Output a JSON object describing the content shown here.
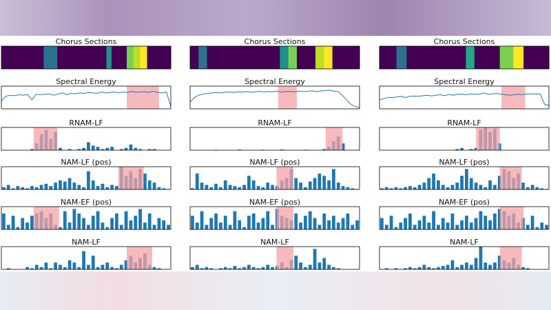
{
  "chart_data": [
    {
      "type": "segments",
      "title": "Chorus Sections",
      "xlim": [
        0,
        100
      ],
      "x": [
        0,
        25,
        33,
        62,
        65,
        74,
        78,
        82,
        86,
        90,
        100
      ],
      "colors": [
        "#440154",
        "#2c728e",
        "#440154",
        "#21918c",
        "#440154",
        "#7ad151",
        "#bddf26",
        "#fde725",
        "#440154",
        "#440154"
      ]
    },
    {
      "type": "line",
      "title": "Spectral Energy",
      "xlim": [
        0,
        100
      ],
      "ylim": [
        0,
        1
      ],
      "color": "#1f77b4",
      "highlight": [
        74,
        93
      ],
      "highlight_color": "#f4a3a6",
      "values": [
        0.35,
        0.55,
        0.6,
        0.58,
        0.62,
        0.6,
        0.63,
        0.4,
        0.65,
        0.62,
        0.64,
        0.66,
        0.6,
        0.65,
        0.7,
        0.62,
        0.68,
        0.66,
        0.7,
        0.68,
        0.72,
        0.7,
        0.68,
        0.74,
        0.7,
        0.72,
        0.75,
        0.7,
        0.74,
        0.72,
        0.76,
        0.73,
        0.74,
        0.75,
        0.72,
        0.78,
        0.72,
        0.7,
        0.74,
        0.1
      ]
    },
    {
      "type": "bar",
      "title": "RNAM-LF",
      "xlim": [
        0,
        100
      ],
      "ylim": [
        0,
        1
      ],
      "color": "#1f77b4",
      "highlight": [
        19,
        33
      ],
      "highlight_color": "#f4a3a6",
      "values": [
        0,
        0,
        0,
        0,
        0,
        0,
        0.05,
        0.3,
        0.7,
        0.9,
        0.5,
        0.8,
        0.1,
        0,
        0.05,
        0,
        0.05,
        0.1,
        0.35,
        0.2,
        0.15,
        0.05,
        0.1,
        0.15,
        0,
        0.05,
        0.1,
        0.25,
        0.1,
        0.05,
        0,
        0.05,
        0.05,
        0,
        0,
        0
      ]
    },
    {
      "type": "bar",
      "title": "NAM-LF (pos)",
      "xlim": [
        0,
        100
      ],
      "ylim": [
        0,
        1
      ],
      "color": "#1f77b4",
      "highlight": [
        69,
        84
      ],
      "highlight_color": "#f4a3a6",
      "values": [
        0.1,
        0.2,
        0.05,
        0.15,
        0.1,
        0.05,
        0.15,
        0.1,
        0.2,
        0.25,
        0.15,
        0.3,
        0.4,
        0.35,
        0.5,
        0.3,
        0.2,
        0.1,
        0.8,
        0.4,
        0.15,
        0.25,
        0.1,
        0.2,
        0.15,
        1,
        0.6,
        0.8,
        0.5,
        0.9,
        0.7,
        0.4,
        0.3,
        0.1,
        0.05,
        0.02
      ]
    },
    {
      "type": "bar",
      "title": "NAM-EF (pos)",
      "xlim": [
        0,
        100
      ],
      "ylim": [
        0,
        1
      ],
      "color": "#1f77b4",
      "highlight": [
        19,
        34
      ],
      "highlight_color": "#f4a3a6",
      "values": [
        0.7,
        0.2,
        0.6,
        0.1,
        0.5,
        0.3,
        0.6,
        0.7,
        0.8,
        0.5,
        0.7,
        0.2,
        0.1,
        0.8,
        0.3,
        0.9,
        0.7,
        0.5,
        0.2,
        0.6,
        0.8,
        0.3,
        0.1,
        0.5,
        0.7,
        0.2,
        0.8,
        0.4,
        0.6,
        0.9,
        0.3,
        0.7,
        0.2,
        0.5,
        0.4,
        0.2
      ]
    },
    {
      "type": "bar",
      "title": "NAM-LF",
      "xlim": [
        0,
        100
      ],
      "ylim": [
        0,
        1
      ],
      "color": "#1f77b4",
      "highlight": [
        74,
        89
      ],
      "highlight_color": "#f4a3a6",
      "values": [
        0,
        0.05,
        0,
        0,
        0,
        0.1,
        0.05,
        0.2,
        0.1,
        0.3,
        0.05,
        0.3,
        0.2,
        0.1,
        0.4,
        0.3,
        0.1,
        0.8,
        0.2,
        0.6,
        0.1,
        0.2,
        0.3,
        0.1,
        0.05,
        0.2,
        0.4,
        0.6,
        0.3,
        0.5,
        0.7,
        0.2,
        0.1,
        0.05,
        0,
        0
      ]
    },
    {
      "type": "segments",
      "title": "Chorus Sections",
      "xlim": [
        0,
        100
      ],
      "x": [
        0,
        5,
        10,
        53,
        58,
        63,
        74,
        79,
        84,
        100
      ],
      "colors": [
        "#440154",
        "#2c728e",
        "#440154",
        "#21918c",
        "#7ad151",
        "#440154",
        "#bddf26",
        "#fde725",
        "#440154"
      ]
    },
    {
      "type": "line",
      "title": "Spectral Energy",
      "xlim": [
        0,
        100
      ],
      "ylim": [
        0,
        1
      ],
      "color": "#1f77b4",
      "highlight": [
        52,
        63
      ],
      "highlight_color": "#f4a3a6",
      "values": [
        0.3,
        0.5,
        0.6,
        0.65,
        0.68,
        0.7,
        0.72,
        0.7,
        0.73,
        0.74,
        0.72,
        0.75,
        0.74,
        0.76,
        0.73,
        0.75,
        0.77,
        0.74,
        0.76,
        0.75,
        0.78,
        0.74,
        0.76,
        0.77,
        0.75,
        0.78,
        0.76,
        0.77,
        0.8,
        0.76,
        0.78,
        0.8,
        0.82,
        0.78,
        0.76,
        0.6,
        0.4,
        0.2,
        0.1,
        0.05
      ]
    },
    {
      "type": "bar",
      "title": "RNAM-LF",
      "xlim": [
        0,
        100
      ],
      "ylim": [
        0,
        1
      ],
      "color": "#1f77b4",
      "highlight": [
        80,
        90
      ],
      "highlight_color": "#f4a3a6",
      "values": [
        0,
        0,
        0,
        0,
        0,
        0.02,
        0,
        0,
        0,
        0,
        0.03,
        0,
        0,
        0,
        0,
        0.02,
        0,
        0,
        0,
        0.03,
        0,
        0,
        0,
        0,
        0.02,
        0,
        0,
        0,
        0.05,
        0.15,
        0.4,
        0.6,
        0.3,
        0,
        0,
        0
      ]
    },
    {
      "type": "bar",
      "title": "NAM-LF (pos)",
      "xlim": [
        0,
        100
      ],
      "ylim": [
        0,
        1
      ],
      "color": "#1f77b4",
      "highlight": [
        51,
        61
      ],
      "highlight_color": "#f4a3a6",
      "values": [
        0.05,
        0.7,
        0.3,
        0.2,
        0.1,
        0.25,
        0.1,
        0.4,
        0.2,
        0.15,
        0.1,
        0.2,
        0.6,
        0.4,
        0.15,
        0.1,
        0.3,
        0.2,
        0.15,
        0.4,
        0.5,
        0.9,
        0.5,
        0.3,
        0.1,
        0.35,
        0.5,
        0.7,
        0.6,
        0.4,
        0.9,
        0.3,
        0.15,
        0.1,
        0.05,
        0.02
      ]
    },
    {
      "type": "bar",
      "title": "NAM-EF (pos)",
      "xlim": [
        0,
        100
      ],
      "ylim": [
        0,
        1
      ],
      "color": "#1f77b4",
      "highlight": [
        51,
        61
      ],
      "highlight_color": "#f4a3a6",
      "values": [
        0.6,
        0.3,
        0.8,
        0.2,
        0.5,
        0.7,
        0.3,
        0.6,
        0.2,
        0.8,
        0.4,
        0.1,
        0.6,
        0.7,
        0.3,
        0.5,
        0.8,
        0.2,
        0.9,
        0.6,
        0.5,
        0.4,
        0.7,
        0.3,
        0.6,
        0.8,
        0.5,
        0.2,
        0.7,
        0.4,
        0.6,
        0.3,
        0.5,
        0.7,
        0.2,
        0.4
      ]
    },
    {
      "type": "bar",
      "title": "NAM-LF",
      "xlim": [
        0,
        100
      ],
      "ylim": [
        0,
        1
      ],
      "color": "#1f77b4",
      "highlight": [
        51,
        61
      ],
      "highlight_color": "#f4a3a6",
      "values": [
        0.1,
        0.2,
        0.05,
        0.1,
        0.05,
        0,
        0.05,
        0.1,
        0.05,
        0.15,
        0.05,
        0.1,
        0.2,
        0.1,
        0.05,
        0.1,
        0.2,
        0.1,
        0.15,
        0.3,
        0.1,
        0.4,
        0.6,
        0.3,
        0.1,
        0.2,
        0.9,
        0.3,
        0.5,
        0.2,
        0.1,
        0.05,
        0,
        0,
        0,
        0
      ]
    },
    {
      "type": "segments",
      "title": "Chorus Sections",
      "xlim": [
        0,
        100
      ],
      "x": [
        0,
        10,
        16,
        51,
        56,
        71,
        79,
        85,
        100
      ],
      "colors": [
        "#440154",
        "#2c728e",
        "#440154",
        "#22a884",
        "#440154",
        "#7ad151",
        "#fde725",
        "#440154"
      ]
    },
    {
      "type": "line",
      "title": "Spectral Energy",
      "xlim": [
        0,
        100
      ],
      "ylim": [
        0,
        1
      ],
      "color": "#1f77b4",
      "highlight": [
        72,
        86
      ],
      "highlight_color": "#f4a3a6",
      "values": [
        0.4,
        0.45,
        0.5,
        0.5,
        0.52,
        0.55,
        0.5,
        0.55,
        0.56,
        0.55,
        0.58,
        0.6,
        0.57,
        0.6,
        0.62,
        0.58,
        0.63,
        0.6,
        0.64,
        0.65,
        0.62,
        0.66,
        0.64,
        0.65,
        0.7,
        0.64,
        0.66,
        0.68,
        0.65,
        0.62,
        0.6,
        0.62,
        0.64,
        0.63,
        0.66,
        0.65,
        0.66,
        0.65,
        0.2,
        0.15
      ]
    },
    {
      "type": "bar",
      "title": "RNAM-LF",
      "xlim": [
        0,
        100
      ],
      "ylim": [
        0,
        1
      ],
      "color": "#1f77b4",
      "highlight": [
        57,
        71
      ],
      "highlight_color": "#f4a3a6",
      "values": [
        0,
        0,
        0,
        0,
        0,
        0,
        0,
        0,
        0,
        0,
        0,
        0,
        0,
        0,
        0,
        0,
        0.05,
        0.1,
        0,
        0.05,
        0.1,
        0.9,
        1,
        0.8,
        0.95,
        0.3,
        0,
        0,
        0,
        0,
        0,
        0,
        0,
        0,
        0,
        0
      ]
    },
    {
      "type": "bar",
      "title": "NAM-LF (pos)",
      "xlim": [
        0,
        100
      ],
      "ylim": [
        0,
        1
      ],
      "color": "#1f77b4",
      "highlight": [
        71,
        84
      ],
      "highlight_color": "#f4a3a6",
      "values": [
        0.05,
        0.1,
        0.05,
        0.1,
        0.05,
        0.1,
        0.15,
        0.1,
        0.2,
        0.3,
        0.5,
        0.7,
        0.4,
        0.2,
        0.1,
        0.2,
        0.3,
        0.6,
        0.9,
        0.5,
        0.3,
        0.2,
        0.1,
        0.4,
        0.2,
        0.6,
        0.9,
        0.8,
        0.5,
        0.7,
        0.3,
        0.1,
        0.2,
        0.1,
        0.05,
        0.02
      ]
    },
    {
      "type": "bar",
      "title": "NAM-EF (pos)",
      "xlim": [
        0,
        100
      ],
      "ylim": [
        0,
        1
      ],
      "color": "#1f77b4",
      "highlight": [
        71,
        85
      ],
      "highlight_color": "#f4a3a6",
      "values": [
        0.5,
        0.2,
        0.6,
        0.1,
        0.3,
        0.5,
        0.7,
        0.2,
        0.4,
        0.6,
        0.3,
        0.8,
        0.2,
        0.5,
        0.3,
        0.7,
        0.2,
        0.4,
        0.6,
        0.3,
        0.5,
        0.8,
        0.6,
        0.4,
        0.7,
        0.9,
        0.8,
        0.6,
        0.7,
        0.3,
        0.5,
        0.2,
        0.6,
        0.1,
        0.3,
        0.2
      ]
    },
    {
      "type": "bar",
      "title": "NAM-LF",
      "xlim": [
        0,
        100
      ],
      "ylim": [
        0,
        1
      ],
      "color": "#1f77b4",
      "highlight": [
        71,
        84
      ],
      "highlight_color": "#f4a3a6",
      "values": [
        0,
        0.05,
        0,
        0.05,
        0,
        0.05,
        0.1,
        0.05,
        0.1,
        0.2,
        0.1,
        0.05,
        0.1,
        0.15,
        0.2,
        0.4,
        0.1,
        0.2,
        0.3,
        0.2,
        0.5,
        1,
        0.3,
        0.2,
        0.3,
        0.6,
        0.4,
        0.3,
        0.5,
        0.2,
        0.1,
        0.05,
        0,
        0,
        0,
        0
      ]
    }
  ]
}
